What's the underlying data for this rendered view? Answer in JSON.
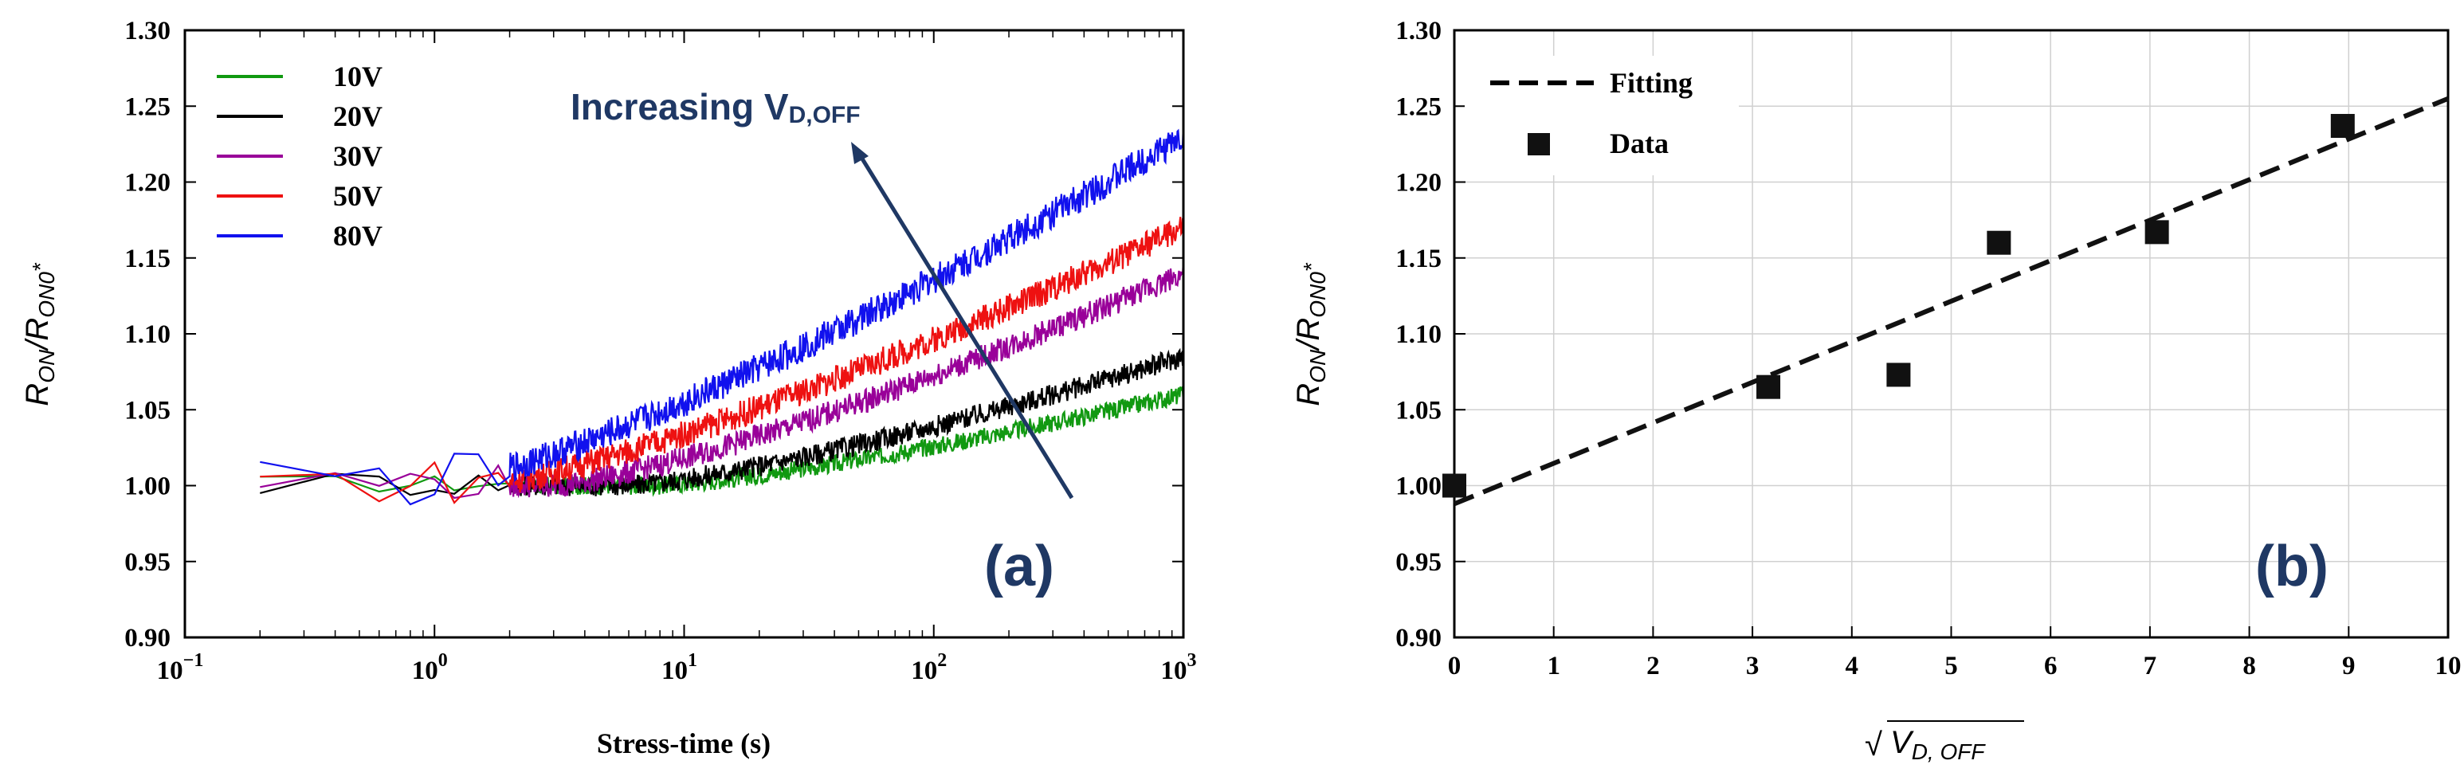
{
  "chart_data": [
    {
      "id": "a",
      "type": "line",
      "panel_label": "(a)",
      "xlabel": "Stress-time (s)",
      "ylabel": {
        "main": "R",
        "sub1": "ON",
        "slash": "/R",
        "sub2": "ON0",
        "star": "*"
      },
      "xscale": "log",
      "xlim": [
        0.1,
        1000
      ],
      "ylim": [
        0.9,
        1.3
      ],
      "x_ticks": [
        {
          "value": 0.1,
          "base": "10",
          "exp": "−1"
        },
        {
          "value": 1,
          "base": "10",
          "exp": "0"
        },
        {
          "value": 10,
          "base": "10",
          "exp": "1"
        },
        {
          "value": 100,
          "base": "10",
          "exp": "2"
        },
        {
          "value": 1000,
          "base": "10",
          "exp": "3"
        }
      ],
      "y_ticks": [
        "0.90",
        "0.95",
        "1.00",
        "1.05",
        "1.10",
        "1.15",
        "1.20",
        "1.25",
        "1.30"
      ],
      "annotation": {
        "text": "Increasing V",
        "sub": "D,OFF"
      },
      "series": [
        {
          "name": "10V",
          "color": "#119911",
          "t0": 0.2,
          "start": 1.0,
          "rise_start": 8,
          "end": 1.06,
          "noise": 0.006
        },
        {
          "name": "20V",
          "color": "#000000",
          "t0": 0.2,
          "start": 1.0,
          "rise_start": 6,
          "end": 1.085,
          "noise": 0.007
        },
        {
          "name": "30V",
          "color": "#990099",
          "t0": 0.2,
          "start": 1.0,
          "rise_start": 3,
          "end": 1.14,
          "noise": 0.008
        },
        {
          "name": "50V",
          "color": "#ee1111",
          "t0": 0.2,
          "start": 1.0,
          "rise_start": 1.5,
          "end": 1.17,
          "noise": 0.009
        },
        {
          "name": "80V",
          "color": "#1111ee",
          "t0": 0.2,
          "start": 1.0,
          "rise_start": 1.0,
          "end": 1.23,
          "noise": 0.01
        }
      ]
    },
    {
      "id": "b",
      "type": "scatter",
      "panel_label": "(b)",
      "xlabel": {
        "main": "V",
        "sub": "D, OFF",
        "root": "√"
      },
      "ylabel": {
        "main": "R",
        "sub1": "ON",
        "slash": "/R",
        "sub2": "ON0",
        "star": "*"
      },
      "xlim": [
        0,
        10
      ],
      "ylim": [
        0.9,
        1.3
      ],
      "x_ticks": [
        "0",
        "1",
        "2",
        "3",
        "4",
        "5",
        "6",
        "7",
        "8",
        "9",
        "10"
      ],
      "y_ticks": [
        "0.90",
        "0.95",
        "1.00",
        "1.05",
        "1.10",
        "1.15",
        "1.20",
        "1.25",
        "1.30"
      ],
      "legend": [
        {
          "label": "Fitting",
          "marker": "dashed-line"
        },
        {
          "label": "Data",
          "marker": "square"
        }
      ],
      "data_points": [
        {
          "x": 0.0,
          "y": 1.0
        },
        {
          "x": 3.16,
          "y": 1.065
        },
        {
          "x": 4.47,
          "y": 1.073
        },
        {
          "x": 5.48,
          "y": 1.16
        },
        {
          "x": 7.07,
          "y": 1.167
        },
        {
          "x": 8.94,
          "y": 1.237
        }
      ],
      "fit_line": {
        "x": [
          0,
          10
        ],
        "y": [
          0.988,
          1.255
        ]
      }
    }
  ]
}
